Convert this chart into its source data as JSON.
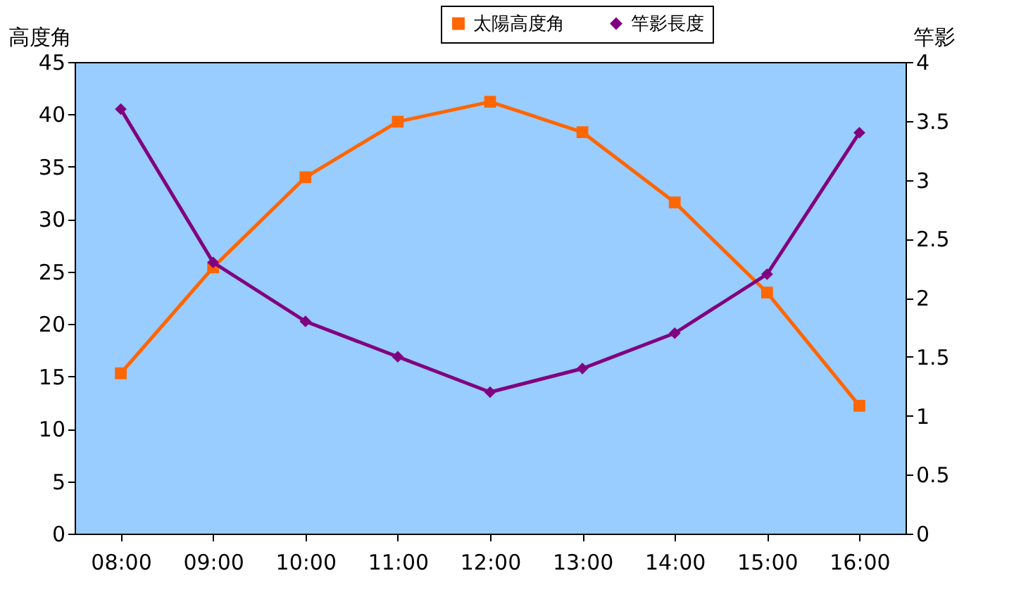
{
  "chart_data": {
    "type": "line",
    "categories": [
      "08:00",
      "09:00",
      "10:00",
      "11:00",
      "12:00",
      "13:00",
      "14:00",
      "15:00",
      "16:00"
    ],
    "series": [
      {
        "name": "太陽高度角",
        "color": "#ff6600",
        "marker": "square",
        "values": [
          15.3,
          25.4,
          34,
          39.3,
          41.2,
          38.3,
          31.6,
          23,
          12.2
        ]
      },
      {
        "name": "竿影長度",
        "color": "#800080",
        "marker": "diamond",
        "axis": "y2",
        "values": [
          3.6,
          2.3,
          1.8,
          1.5,
          1.2,
          1.4,
          1.7,
          2.2,
          3.4
        ]
      }
    ],
    "ylabel": "高度角",
    "y2label": "竿影",
    "ylim": [
      0,
      45
    ],
    "yticks": [
      0,
      5,
      10,
      15,
      20,
      25,
      30,
      35,
      40,
      45
    ],
    "y2lim": [
      0,
      4
    ],
    "y2ticks": [
      0,
      0.5,
      1,
      1.5,
      2,
      2.5,
      3,
      3.5,
      4
    ],
    "grid": false,
    "legend": "top right",
    "line_style": "solid"
  }
}
